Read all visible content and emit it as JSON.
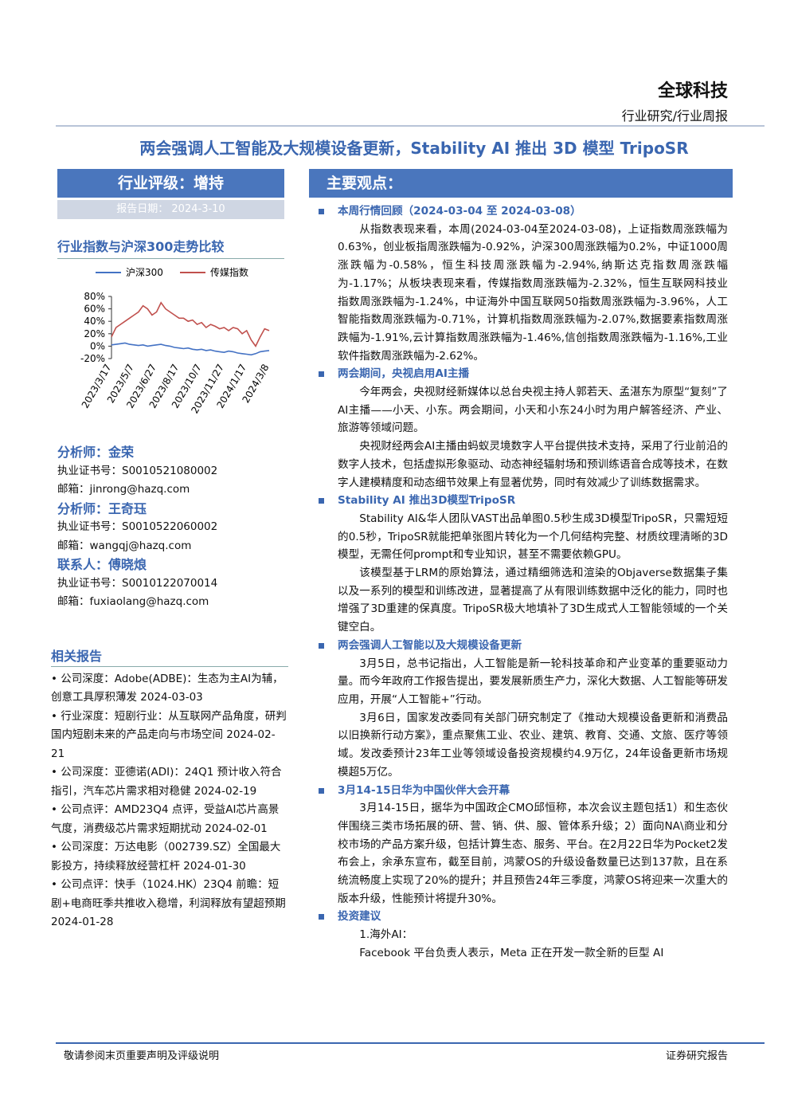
{
  "header": {
    "brand": "全球科技",
    "report_type": "行业研究/行业周报"
  },
  "title": "两会强调人工智能及大规模设备更新，Stability AI 推出 3D 模型 TripoSR",
  "rating": "行业评级：增持",
  "report_date": "报告日期： 2024-3-10",
  "chart_data": {
    "type": "line",
    "title": "行业指数与沪深300走势比较",
    "categories": [
      "2023/3/17",
      null,
      null,
      null,
      null,
      "2023/5/7",
      null,
      null,
      null,
      null,
      "2023/6/27",
      null,
      null,
      null,
      null,
      "2023/8/17",
      null,
      null,
      null,
      null,
      "2023/10/7",
      null,
      null,
      null,
      null,
      "2023/11/27",
      null,
      null,
      null,
      null,
      "2024/1/17",
      null,
      null,
      null,
      null,
      "2024/3/8"
    ],
    "series": [
      {
        "name": "沪深300",
        "color": "#4472c4",
        "values": [
          2,
          3,
          4,
          5,
          3,
          2,
          1,
          2,
          0,
          1,
          2,
          3,
          1,
          0,
          -2,
          -3,
          -4,
          -3,
          -5,
          -6,
          -5,
          -7,
          -6,
          -8,
          -9,
          -10,
          -8,
          -9,
          -11,
          -12,
          -13,
          -14,
          -12,
          -9,
          -8,
          -7
        ]
      },
      {
        "name": "传媒指数",
        "color": "#c0504d",
        "values": [
          15,
          30,
          35,
          40,
          45,
          50,
          55,
          65,
          60,
          50,
          55,
          70,
          60,
          55,
          50,
          45,
          45,
          40,
          42,
          35,
          38,
          30,
          35,
          32,
          28,
          30,
          25,
          30,
          28,
          20,
          25,
          10,
          0,
          15,
          28,
          25
        ]
      }
    ],
    "ylim": [
      -20,
      80
    ],
    "yticks": [
      {
        "value": 80,
        "label": "80%"
      },
      {
        "value": 60,
        "label": "60%"
      },
      {
        "value": 40,
        "label": "40%"
      },
      {
        "value": 20,
        "label": "20%"
      },
      {
        "value": 0,
        "label": "0%"
      },
      {
        "value": -20,
        "label": "-20%"
      }
    ]
  },
  "contacts": [
    {
      "role": "分析师：金荣",
      "cert": "执业证书号：S0010521080002",
      "email": "邮箱：jinrong@hazq.com"
    },
    {
      "role": "分析师：王奇珏",
      "cert": "执业证书号：S0010522060002",
      "email": "邮箱：wangqj@hazq.com"
    },
    {
      "role": "联系人：傅晓烺",
      "cert": "执业证书号：S0010122070014",
      "email": "邮箱：fuxiaolang@hazq.com"
    }
  ],
  "related": {
    "title": "相关报告",
    "items": [
      "• 公司深度：Adobe(ADBE)：生态为主AI为辅，创意工具厚积薄发 2024-03-03",
      "• 行业深度：短剧行业：从互联网产品角度，研判国内短剧未来的产品走向与市场空间 2024-02-21",
      "• 公司深度：亚德诺(ADI)：24Q1 预计收入符合指引，汽车芯片需求相对稳健 2024-02-19",
      "• 公司点评：AMD23Q4 点评，受益AI芯片高景气度，消费级芯片需求短期扰动 2024-02-01",
      "• 公司深度：万达电影（002739.SZ）全国最大影投方，持续释放经营杠杆 2024-01-30",
      "• 公司点评：快手（1024.HK）23Q4 前瞻：短剧+电商旺季共推收入稳增，利润释放有望超预期 2024-01-28"
    ]
  },
  "main": {
    "heading": "主要观点：",
    "sections": [
      {
        "title": "本周行情回顾（2024-03-04 至 2024-03-08）",
        "paragraphs": [
          "从指数表现来看，本周(2024-03-04至2024-03-08)，上证指数周涨跌幅为0.63%，创业板指周涨跌幅为-0.92%，沪深300周涨跌幅为0.2%，中证1000周涨跌幅为-0.58%，恒生科技周涨跌幅为-2.94%,纳斯达克指数周涨跌幅为-1.17%；从板块表现来看，传媒指数周涨跌幅为-2.32%，恒生互联网科技业指数周涨跌幅为-1.24%，中证海外中国互联网50指数周涨跌幅为-3.96%，人工智能指数周涨跌幅为-0.71%，计算机指数周涨跌幅为-2.07%,数据要素指数周涨跌幅为-1.91%,云计算指数周涨跌幅为-1.46%,信创指数周涨跌幅为-1.16%,工业软件指数周涨跌幅为-2.62%。"
        ]
      },
      {
        "title": "两会期间，央视启用AI主播",
        "paragraphs": [
          "今年两会，央视财经新媒体以总台央视主持人郭若天、孟湛东为原型“复刻”了AI主播——小天、小东。两会期间，小天和小东24小时为用户解答经济、产业、旅游等领域问题。",
          "央视财经两会AI主播由蚂蚁灵境数字人平台提供技术支持，采用了行业前沿的数字人技术，包括虚拟形象驱动、动态神经辐射场和预训练语音合成等技术，在数字人建模精度和动态细节效果上有显著优势，同时有效减少了训练数据需求。"
        ]
      },
      {
        "title": "Stability AI 推出3D模型TripoSR",
        "paragraphs": [
          "Stability AI&华人团队VAST出品单图0.5秒生成3D模型TripoSR，只需短短的0.5秒，TripoSR就能把单张图片转化为一个几何结构完整、材质纹理清晰的3D模型，无需任何prompt和专业知识，甚至不需要依赖GPU。",
          "该模型基于LRM的原始算法，通过精细筛选和渲染的Objaverse数据集子集以及一系列的模型和训练改进，显著提高了从有限训练数据中泛化的能力，同时也增强了3D重建的保真度。TripoSR极大地填补了3D生成式人工智能领域的一个关键空白。"
        ]
      },
      {
        "title": "两会强调人工智能以及大规模设备更新",
        "paragraphs": [
          "3月5日，总书记指出，人工智能是新一轮科技革命和产业变革的重要驱动力量。而今年政府工作报告提出，要发展新质生产力，深化大数据、人工智能等研发应用，开展“人工智能+”行动。",
          "3月6日，国家发改委同有关部门研究制定了《推动大规模设备更新和消费品以旧换新行动方案》，重点聚焦工业、农业、建筑、教育、交通、文旅、医疗等领域。发改委预计23年工业等领域设备投资规模约4.9万亿，24年设备更新市场规模超5万亿。"
        ]
      },
      {
        "title": "3月14-15日华为中国伙伴大会开幕",
        "paragraphs": [
          "3月14-15日，据华为中国政企CMO邱恒称，本次会议主题包括1）和生态伙伴围绕三类市场拓展的研、营、销、供、服、管体系升级；2）面向NA\\商业和分校市场的产品方案升级，包括计算生态、服务、平台。在2月22日华为Pocket2发布会上，余承东宣布，截至目前，鸿蒙OS的升级设备数量已达到137款，且在系统流畅度上实现了20%的提升；并且预告24年三季度，鸿蒙OS将迎来一次重大的版本升级，性能预计将提升30%。"
        ]
      },
      {
        "title": "投资建议",
        "paragraphs": [
          "1.海外AI：",
          "Facebook 平台负责人表示，Meta 正在开发一款全新的巨型 AI"
        ]
      }
    ]
  },
  "footer": {
    "left": "敬请参阅末页重要声明及评级说明",
    "right": "证券研究报告"
  }
}
